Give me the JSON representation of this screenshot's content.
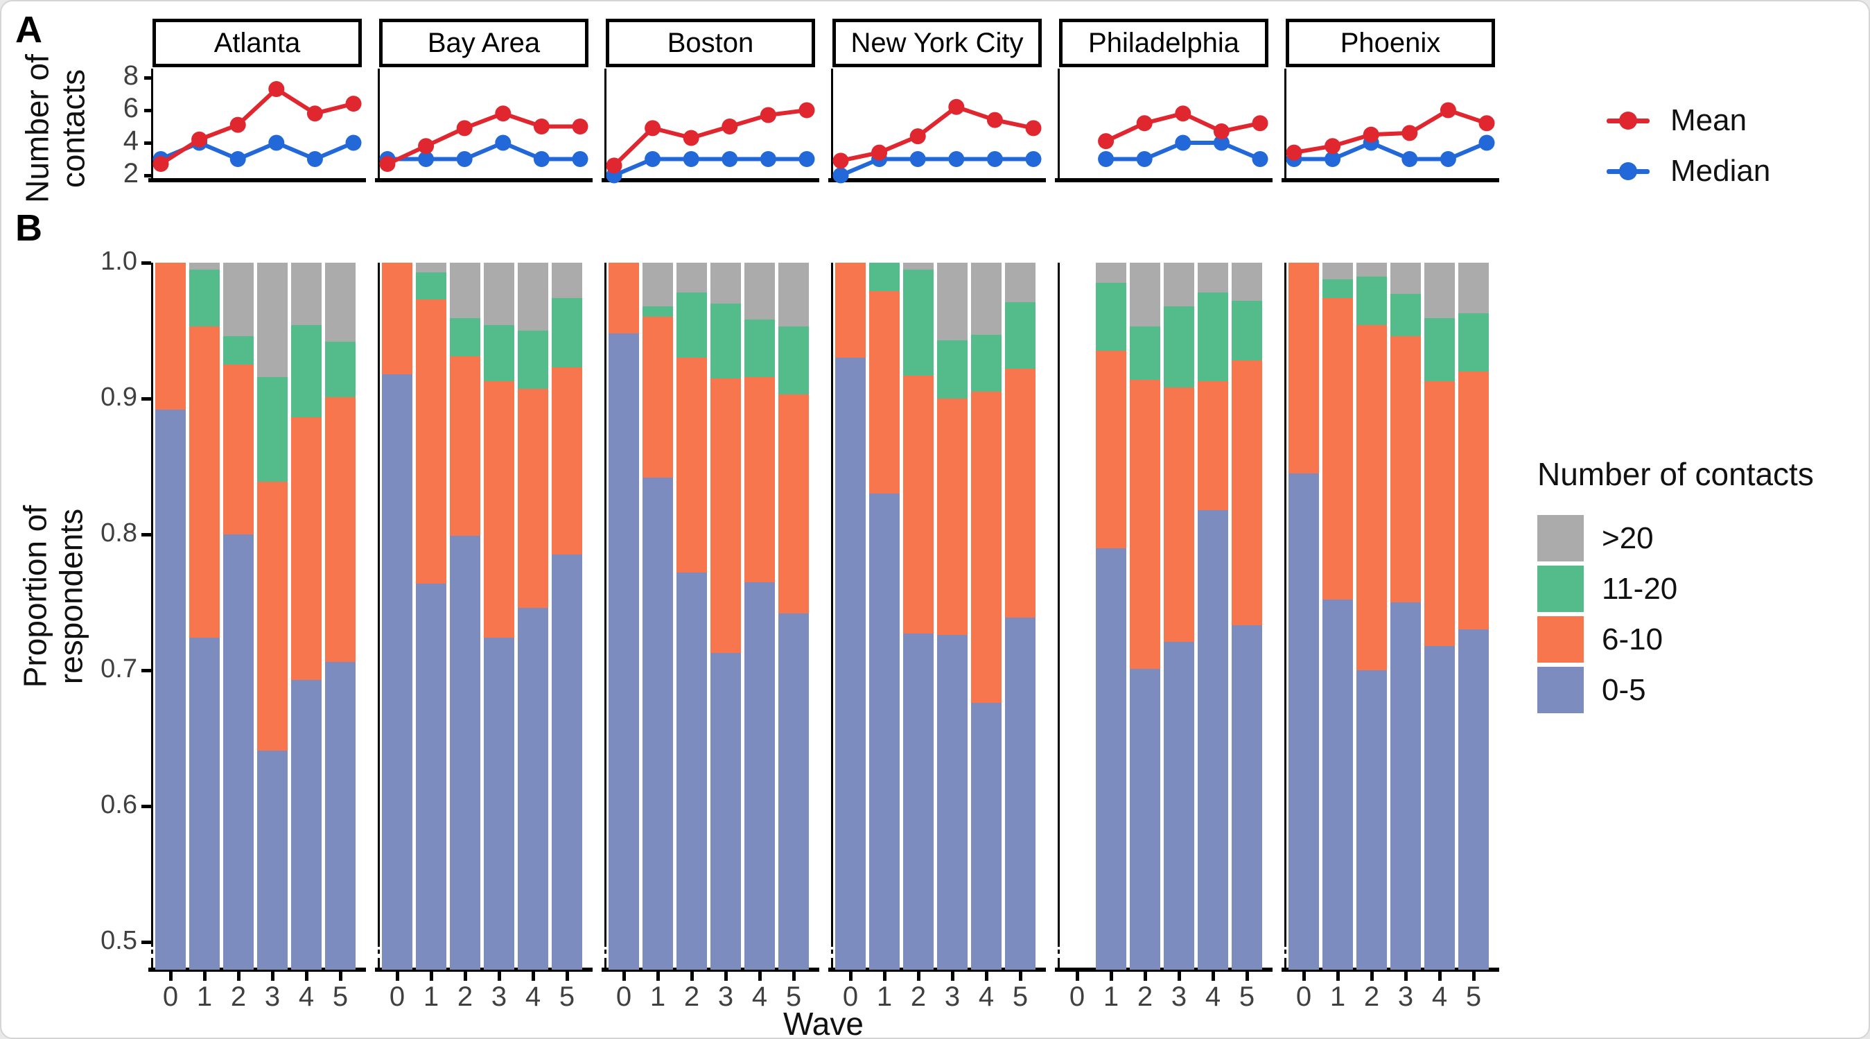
{
  "panel_a": {
    "label": "A",
    "y_axis_title_lines": [
      "Number of",
      "contacts"
    ],
    "y_ticks": [
      "8",
      "6",
      "4",
      "2"
    ]
  },
  "panel_b": {
    "label": "B",
    "y_axis_title_lines": [
      "Proportion of",
      "respondents"
    ],
    "y_ticks": [
      "1.0",
      "0.9",
      "0.8",
      "0.7",
      "0.6",
      "0.5"
    ],
    "x_ticks": [
      "0",
      "1",
      "2",
      "3",
      "4",
      "5"
    ],
    "x_axis_title": "Wave"
  },
  "legend_a": {
    "mean": "Mean",
    "median": "Median"
  },
  "legend_b": {
    "title": "Number of contacts",
    "items": [
      {
        "label": ">20",
        "color": "#ABABAB"
      },
      {
        "label": "11-20",
        "color": "#54BB8B"
      },
      {
        "label": "6-10",
        "color": "#F8764D"
      },
      {
        "label": "0-5",
        "color": "#7D8CBF"
      }
    ]
  },
  "colors": {
    "line_red": "#E0262E",
    "line_blue": "#2268D8",
    "bar_blue": "#7D8CBF",
    "bar_orange": "#F8764D",
    "bar_green": "#54BB8B",
    "bar_gray": "#ABABAB",
    "axis_black": "#000000",
    "tick_text": "#404040"
  },
  "cities": [
    "Atlanta",
    "Bay Area",
    "Boston",
    "New York City",
    "Philadelphia",
    "Phoenix"
  ],
  "chart_data": [
    {
      "type": "line",
      "title": "Panel A: mean and median number of contacts by wave",
      "ylabel": "Number of contacts",
      "yticks": [
        2,
        4,
        6,
        8
      ],
      "ylim": [
        1.7,
        8.6
      ],
      "x": [
        0,
        1,
        2,
        3,
        4,
        5
      ],
      "legend_position": "right",
      "series_labels": {
        "mean": "Mean",
        "median": "Median"
      },
      "facets": [
        {
          "city": "Atlanta",
          "mean": [
            2.7,
            4.2,
            5.1,
            7.3,
            5.8,
            6.4
          ],
          "median": [
            3,
            4,
            3,
            4,
            3,
            4
          ]
        },
        {
          "city": "Bay Area",
          "mean": [
            2.7,
            3.8,
            4.9,
            5.8,
            5.0,
            5.0
          ],
          "median": [
            3,
            3,
            3,
            4,
            3,
            3
          ]
        },
        {
          "city": "Boston",
          "mean": [
            2.6,
            4.9,
            4.3,
            5.0,
            5.7,
            6.0
          ],
          "median": [
            2,
            3,
            3,
            3,
            3,
            3
          ]
        },
        {
          "city": "New York City",
          "mean": [
            2.9,
            3.4,
            4.4,
            6.2,
            5.4,
            4.9
          ],
          "median": [
            2,
            3,
            3,
            3,
            3,
            3
          ]
        },
        {
          "city": "Philadelphia",
          "mean": [
            null,
            4.1,
            5.2,
            5.8,
            4.7,
            5.2
          ],
          "median": [
            null,
            3,
            3,
            4,
            4,
            3
          ]
        },
        {
          "city": "Phoenix",
          "mean": [
            3.4,
            3.8,
            4.5,
            4.6,
            6.0,
            5.2
          ],
          "median": [
            3,
            3,
            4,
            3,
            3,
            4
          ]
        }
      ]
    },
    {
      "type": "bar",
      "stacked": true,
      "title": "Panel B: proportion of respondents by number of contacts",
      "ylabel": "Proportion of respondents",
      "xlabel": "Wave",
      "yticks": [
        1.0,
        0.9,
        0.8,
        0.7,
        0.6,
        0.5
      ],
      "ylim": [
        0.48,
        1.0
      ],
      "axis_break_below": 0.5,
      "legend_title": "Number of contacts",
      "categories_bottom_to_top": [
        "0-5",
        "6-10",
        "11-20",
        ">20"
      ],
      "facets": [
        {
          "city": "Atlanta",
          "waves": [
            {
              "wave": "0",
              "0-5": 0.892,
              "6-10": 0.108,
              "11-20": 0.0,
              ">20": 0.0
            },
            {
              "wave": "1",
              "0-5": 0.724,
              "6-10": 0.229,
              "11-20": 0.042,
              ">20": 0.005
            },
            {
              "wave": "2",
              "0-5": 0.8,
              "6-10": 0.125,
              "11-20": 0.021,
              ">20": 0.054
            },
            {
              "wave": "3",
              "0-5": 0.641,
              "6-10": 0.198,
              "11-20": 0.077,
              ">20": 0.084
            },
            {
              "wave": "4",
              "0-5": 0.693,
              "6-10": 0.193,
              "11-20": 0.068,
              ">20": 0.046
            },
            {
              "wave": "5",
              "0-5": 0.706,
              "6-10": 0.195,
              "11-20": 0.041,
              ">20": 0.058
            }
          ]
        },
        {
          "city": "Bay Area",
          "waves": [
            {
              "wave": "0",
              "0-5": 0.918,
              "6-10": 0.082,
              "11-20": 0.0,
              ">20": 0.0
            },
            {
              "wave": "1",
              "0-5": 0.764,
              "6-10": 0.209,
              "11-20": 0.02,
              ">20": 0.007
            },
            {
              "wave": "2",
              "0-5": 0.799,
              "6-10": 0.132,
              "11-20": 0.028,
              ">20": 0.041
            },
            {
              "wave": "3",
              "0-5": 0.724,
              "6-10": 0.189,
              "11-20": 0.041,
              ">20": 0.046
            },
            {
              "wave": "4",
              "0-5": 0.746,
              "6-10": 0.161,
              "11-20": 0.043,
              ">20": 0.05
            },
            {
              "wave": "5",
              "0-5": 0.785,
              "6-10": 0.138,
              "11-20": 0.051,
              ">20": 0.026
            }
          ]
        },
        {
          "city": "Boston",
          "waves": [
            {
              "wave": "0",
              "0-5": 0.948,
              "6-10": 0.052,
              "11-20": 0.0,
              ">20": 0.0
            },
            {
              "wave": "1",
              "0-5": 0.842,
              "6-10": 0.118,
              "11-20": 0.008,
              ">20": 0.032
            },
            {
              "wave": "2",
              "0-5": 0.772,
              "6-10": 0.158,
              "11-20": 0.048,
              ">20": 0.022
            },
            {
              "wave": "3",
              "0-5": 0.713,
              "6-10": 0.202,
              "11-20": 0.055,
              ">20": 0.03
            },
            {
              "wave": "4",
              "0-5": 0.765,
              "6-10": 0.151,
              "11-20": 0.042,
              ">20": 0.042
            },
            {
              "wave": "5",
              "0-5": 0.742,
              "6-10": 0.161,
              "11-20": 0.05,
              ">20": 0.047
            }
          ]
        },
        {
          "city": "New York City",
          "waves": [
            {
              "wave": "0",
              "0-5": 0.93,
              "6-10": 0.07,
              "11-20": 0.0,
              ">20": 0.0
            },
            {
              "wave": "1",
              "0-5": 0.83,
              "6-10": 0.149,
              "11-20": 0.021,
              ">20": 0.0
            },
            {
              "wave": "2",
              "0-5": 0.727,
              "6-10": 0.19,
              "11-20": 0.078,
              ">20": 0.005
            },
            {
              "wave": "3",
              "0-5": 0.726,
              "6-10": 0.174,
              "11-20": 0.043,
              ">20": 0.057
            },
            {
              "wave": "4",
              "0-5": 0.676,
              "6-10": 0.229,
              "11-20": 0.042,
              ">20": 0.053
            },
            {
              "wave": "5",
              "0-5": 0.739,
              "6-10": 0.183,
              "11-20": 0.049,
              ">20": 0.029
            }
          ]
        },
        {
          "city": "Philadelphia",
          "waves": [
            {
              "wave": "0",
              "0-5": null,
              "6-10": null,
              "11-20": null,
              ">20": null
            },
            {
              "wave": "1",
              "0-5": 0.79,
              "6-10": 0.145,
              "11-20": 0.05,
              ">20": 0.015
            },
            {
              "wave": "2",
              "0-5": 0.701,
              "6-10": 0.213,
              "11-20": 0.039,
              ">20": 0.047
            },
            {
              "wave": "3",
              "0-5": 0.721,
              "6-10": 0.187,
              "11-20": 0.06,
              ">20": 0.032
            },
            {
              "wave": "4",
              "0-5": 0.818,
              "6-10": 0.095,
              "11-20": 0.065,
              ">20": 0.022
            },
            {
              "wave": "5",
              "0-5": 0.733,
              "6-10": 0.195,
              "11-20": 0.044,
              ">20": 0.028
            }
          ]
        },
        {
          "city": "Phoenix",
          "waves": [
            {
              "wave": "0",
              "0-5": 0.845,
              "6-10": 0.155,
              "11-20": 0.0,
              ">20": 0.0
            },
            {
              "wave": "1",
              "0-5": 0.752,
              "6-10": 0.222,
              "11-20": 0.014,
              ">20": 0.012
            },
            {
              "wave": "2",
              "0-5": 0.7,
              "6-10": 0.254,
              "11-20": 0.036,
              ">20": 0.01
            },
            {
              "wave": "3",
              "0-5": 0.75,
              "6-10": 0.196,
              "11-20": 0.031,
              ">20": 0.023
            },
            {
              "wave": "4",
              "0-5": 0.718,
              "6-10": 0.195,
              "11-20": 0.046,
              ">20": 0.041
            },
            {
              "wave": "5",
              "0-5": 0.73,
              "6-10": 0.19,
              "11-20": 0.043,
              ">20": 0.037
            }
          ]
        }
      ]
    }
  ]
}
